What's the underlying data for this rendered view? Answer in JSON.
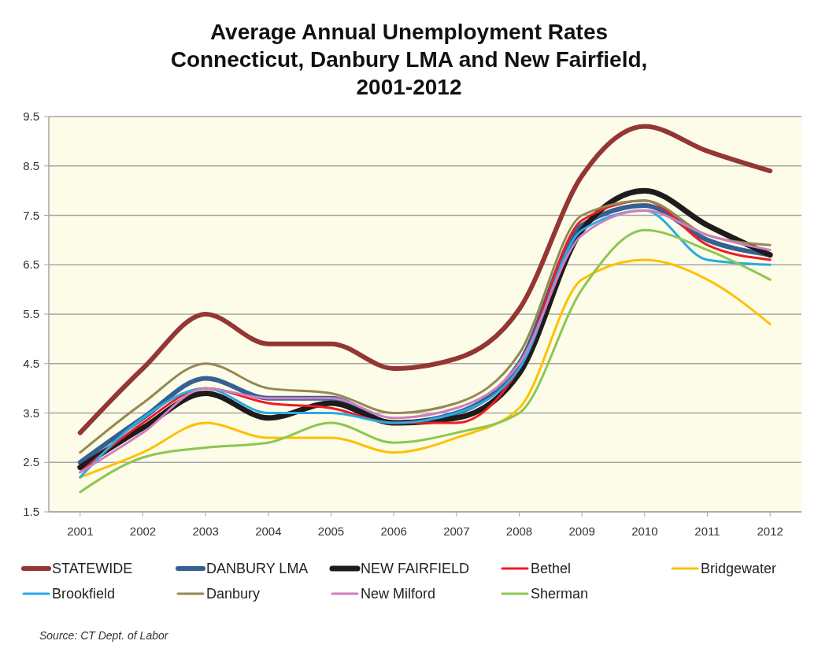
{
  "chart_data": {
    "type": "line",
    "title": "Average Annual Unemployment Rates\nConnecticut, Danbury LMA and New Fairfield,\n2001-2012",
    "categories": [
      "2001",
      "2002",
      "2003",
      "2004",
      "2005",
      "2006",
      "2007",
      "2008",
      "2009",
      "2010",
      "2011",
      "2012"
    ],
    "ylim": [
      1.5,
      9.5
    ],
    "yticks": [
      1.5,
      2.5,
      3.5,
      4.5,
      5.5,
      6.5,
      7.5,
      8.5,
      9.5
    ],
    "grid": "y",
    "legend": "bottom",
    "marker": "none",
    "line_style": "solid",
    "series": [
      {
        "name": "STATEWIDE",
        "color": "#933634",
        "values": [
          3.1,
          4.4,
          5.5,
          4.9,
          4.9,
          4.4,
          4.6,
          5.6,
          8.3,
          9.3,
          8.8,
          8.4
        ]
      },
      {
        "name": "DANBURY LMA",
        "color": "#366092",
        "values": [
          2.5,
          3.4,
          4.2,
          3.8,
          3.8,
          3.3,
          3.5,
          4.5,
          7.3,
          7.7,
          7.0,
          6.7
        ]
      },
      {
        "name": "NEW FAIRFIELD",
        "color": "#1f1a1c",
        "values": [
          2.4,
          3.2,
          3.9,
          3.4,
          3.7,
          3.3,
          3.4,
          4.3,
          7.2,
          8.0,
          7.3,
          6.7
        ]
      },
      {
        "name": "Bethel",
        "color": "#ed1c24",
        "values": [
          2.3,
          3.3,
          4.0,
          3.7,
          3.6,
          3.3,
          3.3,
          4.4,
          7.4,
          7.8,
          6.9,
          6.6
        ]
      },
      {
        "name": "Bridgewater",
        "color": "#ffc000",
        "values": [
          2.2,
          2.7,
          3.3,
          3.0,
          3.0,
          2.7,
          3.0,
          3.6,
          6.2,
          6.6,
          6.2,
          5.3
        ]
      },
      {
        "name": "Brookfield",
        "color": "#29abe2",
        "values": [
          2.2,
          3.4,
          4.0,
          3.5,
          3.5,
          3.3,
          3.5,
          4.4,
          7.2,
          7.6,
          6.6,
          6.5
        ]
      },
      {
        "name": "Danbury",
        "color": "#938953",
        "values": [
          2.7,
          3.7,
          4.5,
          4.0,
          3.9,
          3.5,
          3.7,
          4.7,
          7.5,
          7.8,
          7.1,
          6.9
        ]
      },
      {
        "name": "New Milford",
        "color": "#cc7fc0",
        "values": [
          2.3,
          3.1,
          4.0,
          3.8,
          3.8,
          3.4,
          3.6,
          4.5,
          7.1,
          7.6,
          7.1,
          6.8
        ]
      },
      {
        "name": "Sherman",
        "color": "#8dc653",
        "values": [
          1.9,
          2.6,
          2.8,
          2.9,
          3.3,
          2.9,
          3.1,
          3.5,
          6.0,
          7.2,
          6.8,
          6.2
        ]
      }
    ],
    "annotations": [
      "Source: CT Dept. of Labor"
    ]
  }
}
